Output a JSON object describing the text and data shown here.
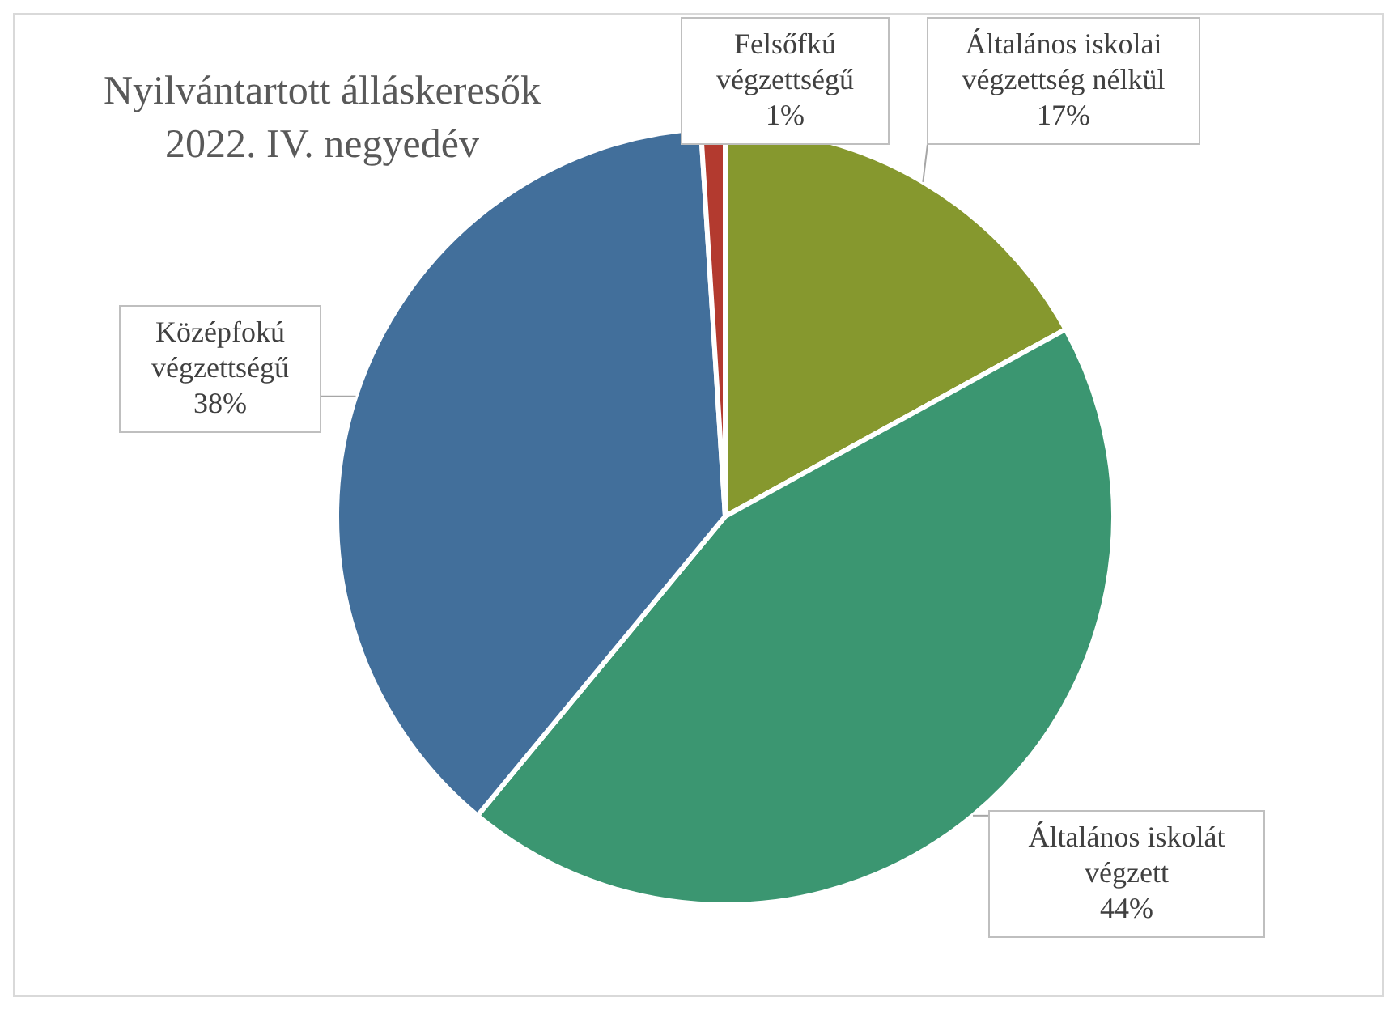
{
  "chart_data": {
    "type": "pie",
    "title": "Nyilvántartott álláskeresők\n2022. IV. negyedév",
    "categories": [
      "Általános iskolai végzettség nélkül",
      "Általános iskolát végzett",
      "Középfokú végzettségű",
      "Felsőfkú végzettségű"
    ],
    "values": [
      17,
      44,
      38,
      1
    ],
    "colors": [
      "#86982e",
      "#3b9671",
      "#426f9b",
      "#b33a2f"
    ],
    "value_labels": [
      "17%",
      "44%",
      "38%",
      "1%"
    ]
  }
}
